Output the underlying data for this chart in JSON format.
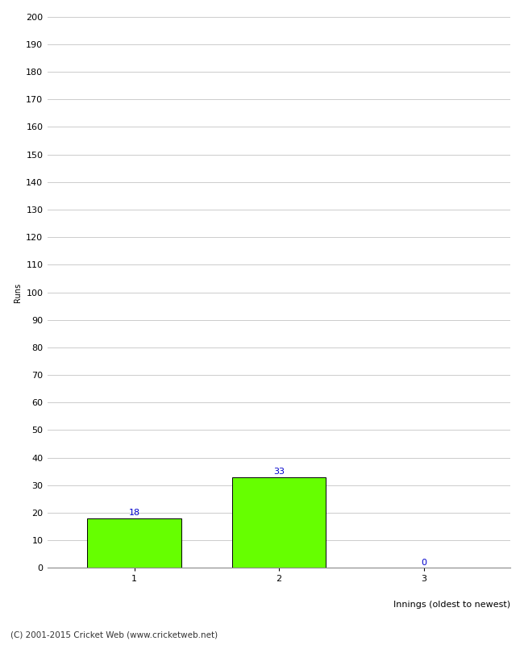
{
  "xlabel": "Innings (oldest to newest)",
  "ylabel": "Runs",
  "categories": [
    "1",
    "2",
    "3"
  ],
  "values": [
    18,
    33,
    0
  ],
  "bar_color": "#66ff00",
  "bar_edge_color": "#000000",
  "label_color": "#0000cc",
  "ylim": [
    0,
    200
  ],
  "ytick_step": 10,
  "background_color": "#ffffff",
  "footer": "(C) 2001-2015 Cricket Web (www.cricketweb.net)",
  "grid_color": "#cccccc",
  "label_fontsize": 8,
  "axis_fontsize": 8,
  "ylabel_fontsize": 7,
  "bar_width": 0.65,
  "figsize": [
    6.5,
    8.0
  ],
  "dpi": 100
}
